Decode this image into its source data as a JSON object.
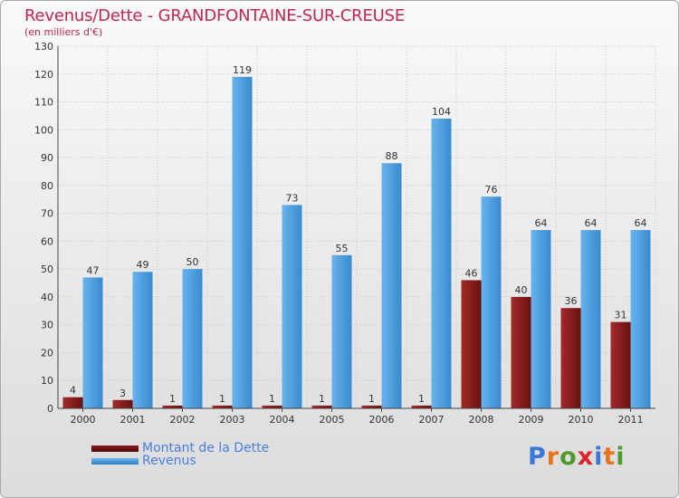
{
  "header": {
    "title": "Revenus/Dette - GRANDFONTAINE-SUR-CREUSE",
    "subtitle": "(en milliers d'€)"
  },
  "legend": {
    "debt_label": "Montant de la Dette",
    "revenue_label": "Revenus"
  },
  "logo": {
    "text": "Proxiti",
    "letters": [
      "P",
      "r",
      "o",
      "x",
      "i",
      "t",
      "i"
    ],
    "colors": [
      "#3b78d8",
      "#e8731f",
      "#4f9a2b",
      "#d9252a",
      "#3b78d8",
      "#e8731f",
      "#4f9a2b"
    ]
  },
  "colors": {
    "debt": "#8b1a1a",
    "debt_dark": "#5e0d0d",
    "revenue": "#5aa9e6",
    "revenue_dark": "#2f7fc5",
    "title": "#c0274f",
    "legend_text": "#4a7de0"
  },
  "chart_data": {
    "type": "bar",
    "title": "Revenus/Dette - GRANDFONTAINE-SUR-CREUSE",
    "subtitle": "(en milliers d'€)",
    "xlabel": "",
    "ylabel": "",
    "categories": [
      "2000",
      "2001",
      "2002",
      "2003",
      "2004",
      "2005",
      "2006",
      "2007",
      "2008",
      "2009",
      "2010",
      "2011"
    ],
    "series": [
      {
        "name": "Montant de la Dette",
        "values": [
          4,
          3,
          1,
          1,
          1,
          1,
          1,
          1,
          46,
          40,
          36,
          31
        ]
      },
      {
        "name": "Revenus",
        "values": [
          47,
          49,
          50,
          119,
          73,
          55,
          88,
          104,
          76,
          64,
          64,
          64
        ]
      }
    ],
    "ylim": [
      0,
      130
    ],
    "yticks": [
      0,
      10,
      20,
      30,
      40,
      50,
      60,
      70,
      80,
      90,
      100,
      110,
      120,
      130
    ],
    "grid": true,
    "legend_position": "bottom-left"
  }
}
